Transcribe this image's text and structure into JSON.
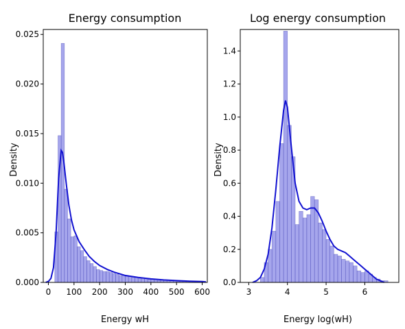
{
  "chart_data": [
    {
      "type": "histogram",
      "title": "Energy consumption",
      "xlabel": "Energy wH",
      "ylabel": "Density",
      "xlim": [
        -20,
        620
      ],
      "ylim": [
        0,
        0.0255
      ],
      "xticks": [
        0,
        100,
        200,
        300,
        400,
        500,
        600
      ],
      "xtick_labels": [
        "0",
        "100",
        "200",
        "300",
        "400",
        "500",
        "600"
      ],
      "yticks": [
        0.0,
        0.005,
        0.01,
        0.015,
        0.02,
        0.025
      ],
      "ytick_labels": [
        "0.000",
        "0.005",
        "0.010",
        "0.015",
        "0.020",
        "0.025"
      ],
      "grid": false,
      "bar_color": "#6b6be0",
      "bar_edge_color": "#3a3ab0",
      "kde_color": "#1010d0",
      "bin_width": 12.5,
      "bins_left": [
        25,
        37.5,
        50,
        62.5,
        75,
        87.5,
        100,
        112.5,
        125,
        137.5,
        150,
        162.5,
        175,
        187.5,
        200,
        212.5,
        225,
        237.5,
        250,
        262.5,
        275,
        287.5,
        300,
        312.5,
        325,
        337.5,
        350,
        362.5,
        375,
        387.5,
        400,
        412.5,
        425,
        437.5,
        450,
        462.5,
        475,
        487.5,
        500,
        512.5,
        525,
        537.5,
        550,
        562.5,
        575,
        587.5
      ],
      "densities": [
        0.0051,
        0.0148,
        0.0241,
        0.0094,
        0.0064,
        0.0046,
        0.0047,
        0.0036,
        0.0032,
        0.0026,
        0.0022,
        0.0019,
        0.0016,
        0.0013,
        0.0012,
        0.0011,
        0.0011,
        0.001,
        0.0009,
        0.0008,
        0.0007,
        0.0007,
        0.0006,
        0.0006,
        0.0005,
        0.0005,
        0.0004,
        0.0004,
        0.0004,
        0.0003,
        0.0003,
        0.0003,
        0.0002,
        0.0002,
        0.0002,
        0.0002,
        0.0002,
        0.0002,
        0.0001,
        0.0001,
        0.0001,
        0.0001,
        0.0001,
        0.0001,
        0.0001,
        0.0001
      ],
      "kde": {
        "x": [
          -10,
          0,
          10,
          20,
          30,
          40,
          50,
          55,
          60,
          70,
          80,
          90,
          100,
          120,
          140,
          160,
          180,
          200,
          230,
          260,
          300,
          350,
          400,
          450,
          500,
          550,
          600,
          615
        ],
        "y": [
          0.0,
          0.0001,
          0.0004,
          0.0015,
          0.005,
          0.0105,
          0.0133,
          0.0131,
          0.0122,
          0.0099,
          0.0078,
          0.0063,
          0.0053,
          0.0041,
          0.0033,
          0.0026,
          0.0021,
          0.0017,
          0.0013,
          0.001,
          0.0007,
          0.0005,
          0.00035,
          0.00025,
          0.00018,
          0.00012,
          8e-05,
          5e-05
        ]
      }
    },
    {
      "type": "histogram",
      "title": "Log energy consumption",
      "xlabel": "Energy log(wH)",
      "ylabel": "Density",
      "xlim": [
        2.78,
        6.88
      ],
      "ylim": [
        0,
        1.53
      ],
      "xticks": [
        3,
        4,
        5,
        6
      ],
      "xtick_labels": [
        "3",
        "4",
        "5",
        "6"
      ],
      "yticks": [
        0.0,
        0.2,
        0.4,
        0.6,
        0.8,
        1.0,
        1.2,
        1.4
      ],
      "ytick_labels": [
        "0.0",
        "0.2",
        "0.4",
        "0.6",
        "0.8",
        "1.0",
        "1.2",
        "1.4"
      ],
      "grid": false,
      "bar_color": "#6b6be0",
      "bar_edge_color": "#3a3ab0",
      "kde_color": "#1010d0",
      "bin_width": 0.1,
      "bins_left": [
        3.3,
        3.4,
        3.5,
        3.6,
        3.7,
        3.8,
        3.9,
        4.0,
        4.1,
        4.2,
        4.3,
        4.4,
        4.5,
        4.6,
        4.7,
        4.8,
        4.9,
        5.0,
        5.1,
        5.2,
        5.3,
        5.4,
        5.5,
        5.6,
        5.7,
        5.8,
        5.9,
        6.0,
        6.1,
        6.2,
        6.3,
        6.4,
        6.5
      ],
      "densities": [
        0.03,
        0.12,
        0.2,
        0.31,
        0.49,
        0.84,
        1.52,
        0.95,
        0.76,
        0.35,
        0.43,
        0.39,
        0.41,
        0.52,
        0.5,
        0.36,
        0.32,
        0.26,
        0.22,
        0.17,
        0.16,
        0.14,
        0.13,
        0.12,
        0.1,
        0.07,
        0.06,
        0.07,
        0.05,
        0.03,
        0.02,
        0.01,
        0.01
      ],
      "kde": {
        "x": [
          3.1,
          3.2,
          3.3,
          3.4,
          3.5,
          3.6,
          3.7,
          3.8,
          3.9,
          3.95,
          4.0,
          4.1,
          4.2,
          4.3,
          4.4,
          4.5,
          4.6,
          4.7,
          4.8,
          4.9,
          5.0,
          5.1,
          5.2,
          5.3,
          5.4,
          5.5,
          5.6,
          5.7,
          5.8,
          5.9,
          6.0,
          6.1,
          6.2,
          6.3,
          6.4,
          6.5
        ],
        "y": [
          0.0,
          0.01,
          0.03,
          0.08,
          0.17,
          0.33,
          0.56,
          0.82,
          1.04,
          1.1,
          1.06,
          0.82,
          0.6,
          0.49,
          0.45,
          0.44,
          0.45,
          0.45,
          0.42,
          0.37,
          0.31,
          0.26,
          0.22,
          0.2,
          0.19,
          0.18,
          0.16,
          0.14,
          0.12,
          0.1,
          0.08,
          0.06,
          0.04,
          0.02,
          0.01,
          0.0
        ]
      }
    }
  ]
}
